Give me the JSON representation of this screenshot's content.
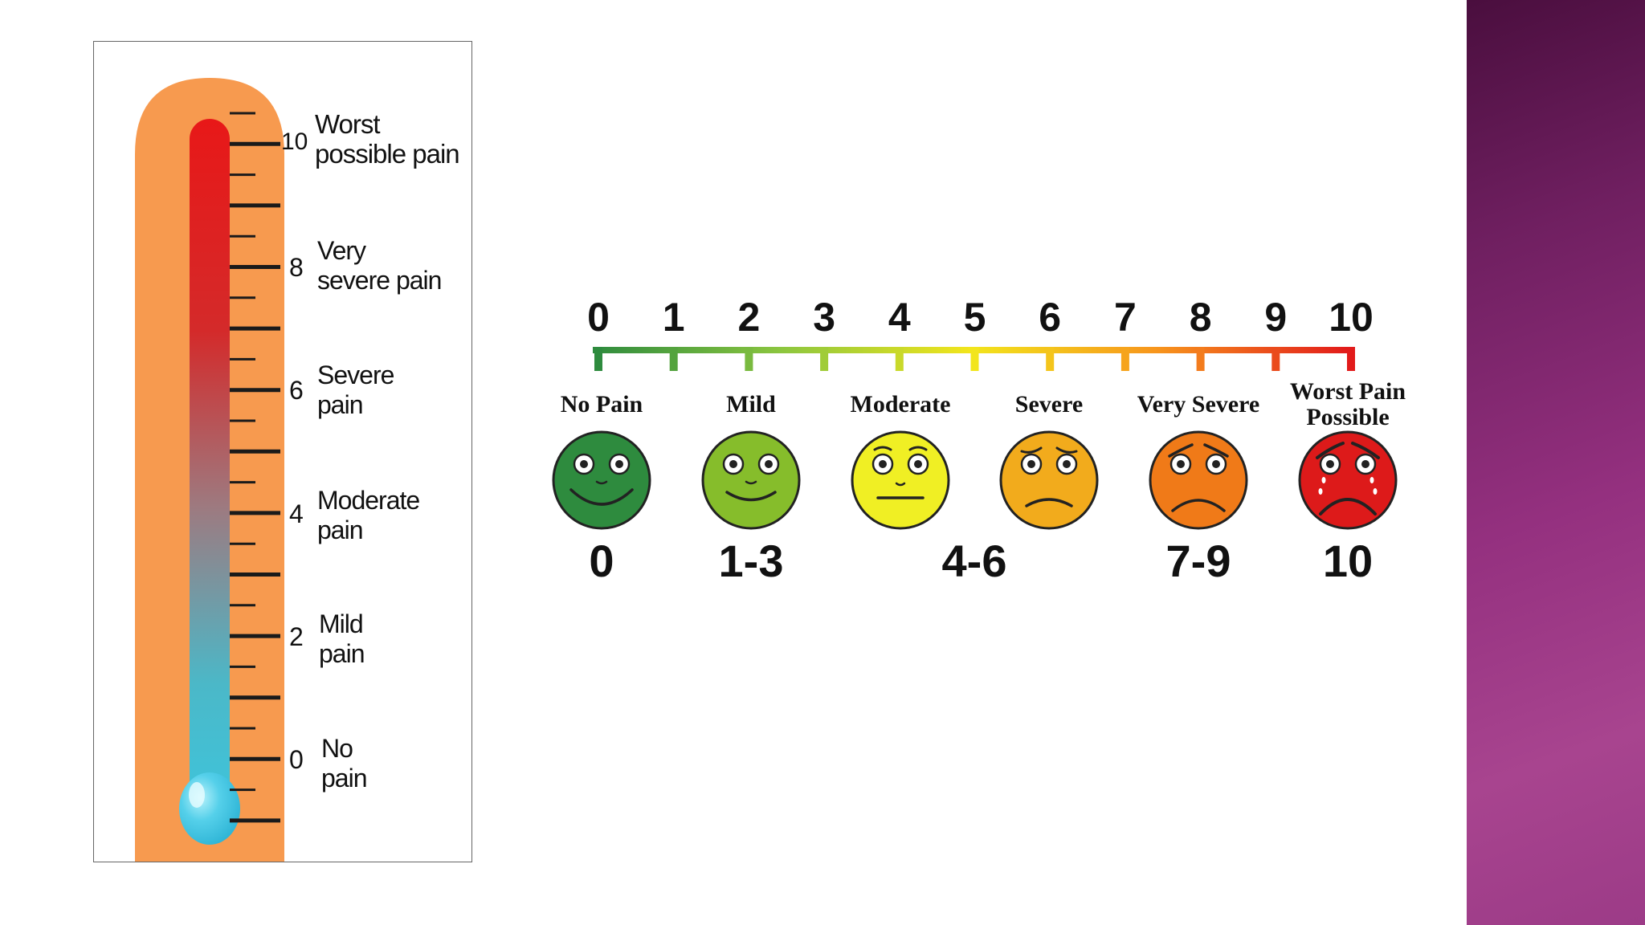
{
  "thermometer": {
    "scale_numbers": [
      "10",
      "8",
      "6",
      "4",
      "2",
      "0"
    ],
    "labels": [
      [
        "Worst",
        "possible pain"
      ],
      [
        "Very",
        "severe pain"
      ],
      [
        "Severe",
        "pain"
      ],
      [
        "Moderate",
        "pain"
      ],
      [
        "Mild",
        "pain"
      ],
      [
        "No",
        "pain"
      ]
    ],
    "colors": {
      "tube": "#f79a4f",
      "mercury_top": "#e81818",
      "mercury_mid": "#9d7a80",
      "mercury_bottom": "#3cc6de",
      "bulb": "#4ccbe6"
    }
  },
  "face_scale": {
    "numbers": [
      "0",
      "1",
      "2",
      "3",
      "4",
      "5",
      "6",
      "7",
      "8",
      "9",
      "10"
    ],
    "categories": [
      {
        "label": [
          "No Pain"
        ],
        "range": "0",
        "color": "#2e8b3e",
        "icon": "happy-face-icon"
      },
      {
        "label": [
          "Mild"
        ],
        "range": "1-3",
        "color": "#86bd2b",
        "icon": "smiling-face-icon"
      },
      {
        "label": [
          "Moderate"
        ],
        "range": "4-6",
        "color": "#f0ef24",
        "icon": "neutral-face-icon"
      },
      {
        "label": [
          "Severe"
        ],
        "range": "",
        "color": "#f2ab1c",
        "icon": "frowning-face-icon"
      },
      {
        "label": [
          "Very Severe"
        ],
        "range": "7-9",
        "color": "#f07a18",
        "icon": "sad-face-icon"
      },
      {
        "label": [
          "Worst Pain",
          "Possible"
        ],
        "range": "10",
        "color": "#dd1a1a",
        "icon": "crying-face-icon"
      }
    ],
    "gradient_colors": [
      "#2e8b3e",
      "#8cc63f",
      "#f2e51c",
      "#f7941d",
      "#e21b1b"
    ]
  }
}
